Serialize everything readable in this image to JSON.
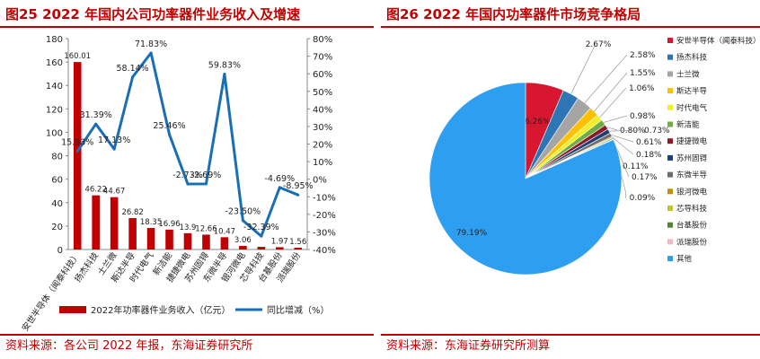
{
  "left": {
    "title": "图25 2022 年国内公司功率器件业务收入及增速",
    "source": "资料来源：各公司 2022 年报，东海证券研究所"
  },
  "right": {
    "title": "图26 2022 年国内功率器件市场竞争格局",
    "source": "资料来源：东海证券研究所测算"
  },
  "chart_data": [
    {
      "type": "bar",
      "title": "",
      "categories": [
        "安世半导体（闻泰科技）",
        "扬杰科技",
        "士兰微",
        "斯达半导",
        "时代电气",
        "新洁能",
        "捷捷微电",
        "苏州固锝",
        "东微半导",
        "银河微电",
        "芯导科技",
        "台基股份",
        "派瑞股份"
      ],
      "series": [
        {
          "name": "2022年功率器件业务收入（亿元）",
          "type": "bar",
          "axis": "left",
          "color": "#c00000",
          "values": [
            160.01,
            46.22,
            44.67,
            26.82,
            18.35,
            16.96,
            13.9,
            12.66,
            10.47,
            3.06,
            2.27,
            1.97,
            1.56
          ],
          "labels": [
            "160.01",
            "46.22",
            "44.67",
            "26.82",
            "18.35",
            "16.96",
            "13.9",
            "12.66",
            "10.47",
            "3.06",
            "",
            "1.97",
            "1.56"
          ]
        },
        {
          "name": "同比增减（%）",
          "type": "line",
          "axis": "right",
          "color": "#1a6eb5",
          "values": [
            15.93,
            31.39,
            17.13,
            58.14,
            71.83,
            25.46,
            -2.73,
            -2.69,
            59.83,
            -23.5,
            -32.39,
            -4.69,
            -8.95
          ],
          "labels": [
            "15.93%",
            "31.39%",
            "17.13%",
            "58.14%",
            "71.83%",
            "25.46%",
            "-2.73%",
            "-2.69%",
            "59.83%",
            "-23.50%",
            "-32.39%",
            "-4.69%",
            "-8.95%"
          ]
        }
      ],
      "ylim": [
        0,
        180
      ],
      "yticks": [
        "0",
        "20",
        "40",
        "60",
        "80",
        "100",
        "120",
        "140",
        "160",
        "180"
      ],
      "y2lim": [
        -40,
        80
      ],
      "y2ticks": [
        "-40%",
        "-30%",
        "-20%",
        "-10%",
        "0%",
        "10%",
        "20%",
        "30%",
        "40%",
        "50%",
        "60%",
        "70%",
        "80%"
      ],
      "legend_position": "bottom"
    },
    {
      "type": "pie",
      "title": "",
      "slices": [
        {
          "name": "安世半导体（闻泰科技）",
          "value": 6.26,
          "label": "6.26%",
          "color": "#d7172f"
        },
        {
          "name": "扬杰科技",
          "value": 2.67,
          "label": "2.67%",
          "color": "#2e75b6"
        },
        {
          "name": "士兰微",
          "value": 2.58,
          "label": "2.58%",
          "color": "#a5a5a5"
        },
        {
          "name": "斯达半导",
          "value": 1.55,
          "label": "1.55%",
          "color": "#ffc000"
        },
        {
          "name": "时代电气",
          "value": 1.06,
          "label": "1.06%",
          "color": "#f2ef2a"
        },
        {
          "name": "新洁能",
          "value": 0.98,
          "label": "0.98%",
          "color": "#70ad47"
        },
        {
          "name": "捷捷微电",
          "value": 0.8,
          "label": "0.80%",
          "color": "#8b1a2b"
        },
        {
          "name": "苏州固锝",
          "value": 0.73,
          "label": "0.73%",
          "color": "#1f3f73"
        },
        {
          "name": "东微半导",
          "value": 0.61,
          "label": "0.61%",
          "color": "#6d6d6d"
        },
        {
          "name": "银河微电",
          "value": 0.18,
          "label": "0.18%",
          "color": "#bf8f00"
        },
        {
          "name": "芯导科技",
          "value": 0.11,
          "label": "0.11%",
          "color": "#c9c229"
        },
        {
          "name": "台基股份",
          "value": 0.17,
          "label": "0.17%",
          "color": "#548235"
        },
        {
          "name": "派瑞股份",
          "value": 0.09,
          "label": "0.09%",
          "color": "#f4b6c2"
        },
        {
          "name": "其他",
          "value": 79.19,
          "label": "79.19%",
          "color": "#2e9ff0"
        }
      ],
      "legend_position": "right"
    }
  ]
}
